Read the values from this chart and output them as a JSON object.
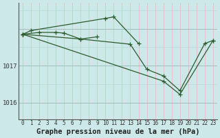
{
  "title": "Graphe pression niveau de la mer (hPa)",
  "bg_color": "#cce8e8",
  "grid_color_v": "#e8b8b8",
  "grid_color_h": "#b8d8d8",
  "line_color": "#2d5a2d",
  "marker_color": "#2d5a2d",
  "axis_color": "#666666",
  "xlim": [
    -0.5,
    23.5
  ],
  "ylim": [
    1015.55,
    1018.7
  ],
  "yticks": [
    1016,
    1017,
    1018
  ],
  "ytick_labels": [
    "1016",
    "1017",
    ""
  ],
  "xticks": [
    0,
    1,
    2,
    3,
    4,
    5,
    6,
    7,
    8,
    9,
    10,
    11,
    12,
    13,
    14,
    15,
    16,
    17,
    18,
    19,
    20,
    21,
    22,
    23
  ],
  "series": [
    {
      "x": [
        0,
        1,
        10,
        11,
        14
      ],
      "y": [
        1017.85,
        1017.95,
        1018.28,
        1018.32,
        1017.6
      ]
    },
    {
      "x": [
        0,
        2,
        4,
        5,
        7,
        9
      ],
      "y": [
        1017.85,
        1017.9,
        1017.9,
        1017.88,
        1017.72,
        1017.78
      ]
    },
    {
      "x": [
        0,
        7,
        13,
        15,
        17,
        19,
        22,
        23
      ],
      "y": [
        1017.85,
        1017.72,
        1017.58,
        1016.9,
        1016.72,
        1016.32,
        1017.6,
        1017.68
      ]
    },
    {
      "x": [
        0,
        17,
        19,
        23
      ],
      "y": [
        1017.85,
        1016.58,
        1016.22,
        1017.68
      ]
    }
  ],
  "ylabel_fontsize": 6.5,
  "xlabel_fontsize": 7.5,
  "tick_fontsize": 5.5
}
